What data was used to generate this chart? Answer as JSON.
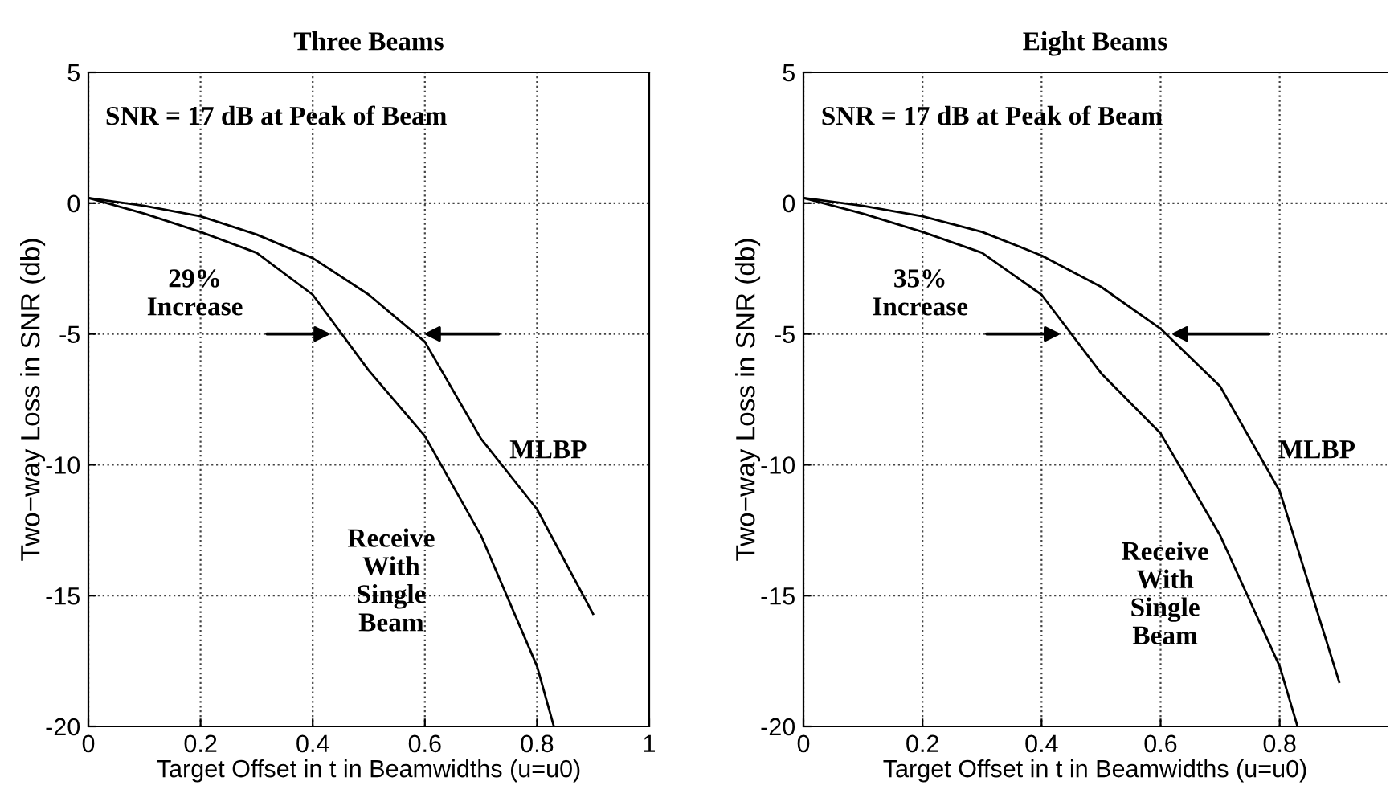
{
  "chart_data": [
    {
      "type": "line",
      "title": "Three Beams",
      "xlabel": "Target Offset in t in Beamwidths (u=u0)",
      "ylabel": "Two−way Loss in SNR (db)",
      "xlim": [
        0,
        1
      ],
      "ylim": [
        -20,
        5
      ],
      "xticks": [
        0,
        0.2,
        0.4,
        0.6,
        0.8,
        1
      ],
      "yticks": [
        -20,
        -15,
        -10,
        -5,
        0,
        5
      ],
      "grid": true,
      "series": [
        {
          "name": "MLBP",
          "color": "#000000",
          "x": [
            0,
            0.1,
            0.2,
            0.3,
            0.4,
            0.5,
            0.6,
            0.7,
            0.8,
            0.9
          ],
          "values": [
            0.2,
            -0.1,
            -0.5,
            -1.2,
            -2.1,
            -3.5,
            -5.3,
            -9.0,
            -11.7,
            -15.7
          ]
        },
        {
          "name": "Receive With Single Beam",
          "color": "#000000",
          "x": [
            0,
            0.1,
            0.2,
            0.3,
            0.4,
            0.5,
            0.6,
            0.7,
            0.8,
            0.83
          ],
          "values": [
            0.2,
            -0.4,
            -1.1,
            -1.9,
            -3.5,
            -6.4,
            -8.9,
            -12.7,
            -17.7,
            -20
          ]
        }
      ],
      "annotations": [
        "SNR = 17 dB at Peak of Beam",
        "29%\nIncrease"
      ]
    },
    {
      "type": "line",
      "title": "Eight Beams",
      "xlabel": "Target Offset in t in Beamwidths (u=u0)",
      "ylabel": "Two−way Loss in SNR (db)",
      "xlim": [
        0,
        0.98
      ],
      "ylim": [
        -20,
        5
      ],
      "xticks": [
        0,
        0.2,
        0.4,
        0.6,
        0.8
      ],
      "yticks": [
        -20,
        -15,
        -10,
        -5,
        0,
        5
      ],
      "grid": true,
      "series": [
        {
          "name": "MLBP",
          "color": "#000000",
          "x": [
            0,
            0.1,
            0.2,
            0.3,
            0.4,
            0.5,
            0.6,
            0.7,
            0.8,
            0.9
          ],
          "values": [
            0.2,
            -0.1,
            -0.5,
            -1.1,
            -2.0,
            -3.2,
            -4.8,
            -7.0,
            -11.0,
            -18.3
          ]
        },
        {
          "name": "Receive With Single Beam",
          "color": "#000000",
          "x": [
            0,
            0.1,
            0.2,
            0.3,
            0.4,
            0.5,
            0.6,
            0.7,
            0.8,
            0.83
          ],
          "values": [
            0.2,
            -0.4,
            -1.1,
            -1.9,
            -3.5,
            -6.5,
            -8.8,
            -12.7,
            -17.7,
            -20
          ]
        }
      ],
      "annotations": [
        "SNR = 17 dB at Peak of Beam",
        "35%\nIncrease"
      ]
    }
  ]
}
